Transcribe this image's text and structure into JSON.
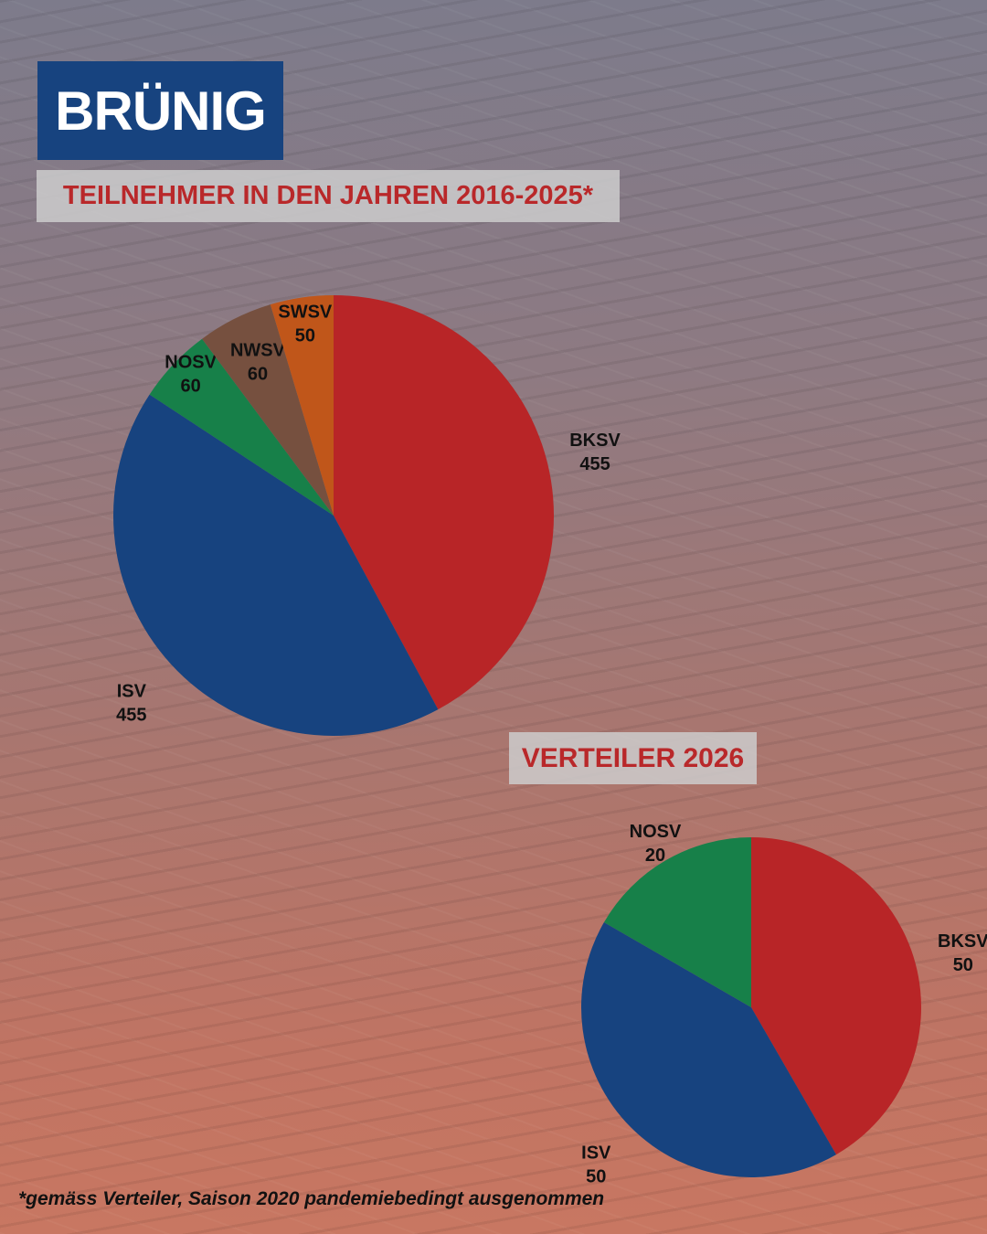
{
  "title": "BRÜNIG",
  "footnote": "*gemäss Verteiler, Saison 2020 pandemiebedingt ausgenommen",
  "chart_data": [
    {
      "type": "pie",
      "title": "TEILNEHMER IN DEN JAHREN 2016-2025*",
      "categories": [
        "BKSV",
        "ISV",
        "NOSV",
        "NWSV",
        "SWSV"
      ],
      "values": [
        455,
        455,
        60,
        60,
        50
      ],
      "colors": [
        "#b82527",
        "#17437f",
        "#178049",
        "#76503f",
        "#c0561a"
      ]
    },
    {
      "type": "pie",
      "title": "VERTEILER 2026",
      "categories": [
        "BKSV",
        "ISV",
        "NOSV"
      ],
      "values": [
        50,
        50,
        20
      ],
      "colors": [
        "#b82527",
        "#17437f",
        "#178049"
      ]
    }
  ]
}
